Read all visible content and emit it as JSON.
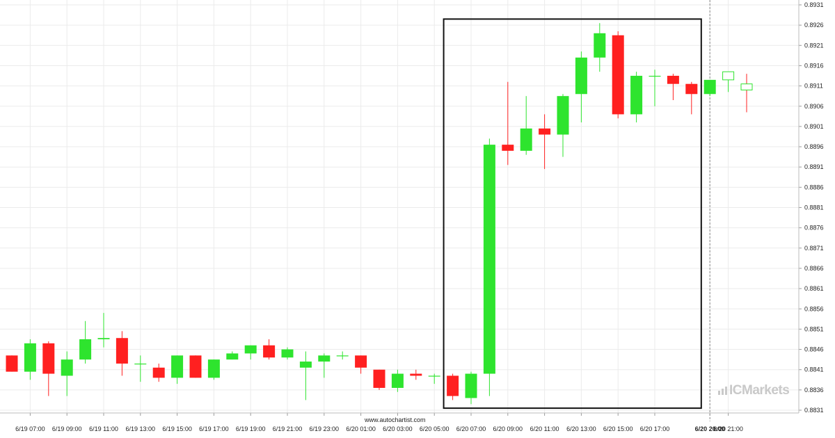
{
  "chart_data": {
    "type": "candlestick",
    "y_ticks": [
      "0.8931",
      "0.8926",
      "0.8921",
      "0.8916",
      "0.8911",
      "0.8906",
      "0.8901",
      "0.8896",
      "0.8891",
      "0.8886",
      "0.8881",
      "0.8876",
      "0.8871",
      "0.8866",
      "0.8861",
      "0.8856",
      "0.8851",
      "0.8846",
      "0.8841",
      "0.8836",
      "0.8831"
    ],
    "ylim": [
      0.8829,
      0.89315
    ],
    "x_labels": [
      "6/19 07:00",
      "6/19 09:00",
      "6/19 11:00",
      "6/19 13:00",
      "6/19 15:00",
      "6/19 17:00",
      "6/19 19:00",
      "6/19 21:00",
      "6/19 23:00",
      "6/20 01:00",
      "6/20 03:00",
      "6/20 05:00",
      "6/20 07:00",
      "6/20 09:00",
      "6/20 11:00",
      "6/20 13:00",
      "6/20 15:00",
      "6/20 17:00",
      "6/20 20:00",
      "6/20 21:00"
    ],
    "highlight_x_label": "6/20 20:00",
    "candles": [
      {
        "t": "6/19 06:00",
        "o": 0.88445,
        "h": 0.88445,
        "l": 0.88405,
        "c": 0.88405
      },
      {
        "t": "6/19 07:00",
        "o": 0.88405,
        "h": 0.88485,
        "l": 0.88385,
        "c": 0.88475
      },
      {
        "t": "6/19 08:00",
        "o": 0.88475,
        "h": 0.8848,
        "l": 0.88345,
        "c": 0.884
      },
      {
        "t": "6/19 09:00",
        "o": 0.88395,
        "h": 0.88455,
        "l": 0.88345,
        "c": 0.88435
      },
      {
        "t": "6/19 10:00",
        "o": 0.88435,
        "h": 0.8853,
        "l": 0.88425,
        "c": 0.88485
      },
      {
        "t": "6/19 11:00",
        "o": 0.88485,
        "h": 0.8855,
        "l": 0.88465,
        "c": 0.88488
      },
      {
        "t": "6/19 12:00",
        "o": 0.88488,
        "h": 0.88505,
        "l": 0.88395,
        "c": 0.88425
      },
      {
        "t": "6/19 13:00",
        "o": 0.88425,
        "h": 0.88445,
        "l": 0.8838,
        "c": 0.88425
      },
      {
        "t": "6/19 14:00",
        "o": 0.88415,
        "h": 0.88425,
        "l": 0.8838,
        "c": 0.8839
      },
      {
        "t": "6/19 15:00",
        "o": 0.8839,
        "h": 0.88445,
        "l": 0.88375,
        "c": 0.88445
      },
      {
        "t": "6/19 16:00",
        "o": 0.88445,
        "h": 0.88445,
        "l": 0.8839,
        "c": 0.8839
      },
      {
        "t": "6/19 17:00",
        "o": 0.8839,
        "h": 0.88435,
        "l": 0.88385,
        "c": 0.88435
      },
      {
        "t": "6/19 18:00",
        "o": 0.88435,
        "h": 0.88455,
        "l": 0.88435,
        "c": 0.8845
      },
      {
        "t": "6/19 19:00",
        "o": 0.8845,
        "h": 0.8847,
        "l": 0.88435,
        "c": 0.8847
      },
      {
        "t": "6/19 20:00",
        "o": 0.8847,
        "h": 0.88485,
        "l": 0.88435,
        "c": 0.8844
      },
      {
        "t": "6/19 21:00",
        "o": 0.8844,
        "h": 0.88465,
        "l": 0.88435,
        "c": 0.8846
      },
      {
        "t": "6/19 22:00",
        "o": 0.88415,
        "h": 0.88455,
        "l": 0.88335,
        "c": 0.8843
      },
      {
        "t": "6/19 23:00",
        "o": 0.8843,
        "h": 0.8845,
        "l": 0.8839,
        "c": 0.88445
      },
      {
        "t": "6/20 00:00",
        "o": 0.88445,
        "h": 0.88455,
        "l": 0.88435,
        "c": 0.88445
      },
      {
        "t": "6/20 01:00",
        "o": 0.88445,
        "h": 0.88445,
        "l": 0.884,
        "c": 0.88415
      },
      {
        "t": "6/20 02:00",
        "o": 0.8841,
        "h": 0.8841,
        "l": 0.8836,
        "c": 0.88365
      },
      {
        "t": "6/20 03:00",
        "o": 0.88365,
        "h": 0.8841,
        "l": 0.88355,
        "c": 0.884
      },
      {
        "t": "6/20 04:00",
        "o": 0.884,
        "h": 0.8841,
        "l": 0.88385,
        "c": 0.88395
      },
      {
        "t": "6/20 05:00",
        "o": 0.88395,
        "h": 0.884,
        "l": 0.88375,
        "c": 0.88395
      },
      {
        "t": "6/20 06:00",
        "o": 0.88395,
        "h": 0.884,
        "l": 0.88335,
        "c": 0.88345
      },
      {
        "t": "6/20 07:00",
        "o": 0.8834,
        "h": 0.88405,
        "l": 0.88325,
        "c": 0.884
      },
      {
        "t": "6/20 08:00",
        "o": 0.884,
        "h": 0.8898,
        "l": 0.88345,
        "c": 0.88965
      },
      {
        "t": "6/20 09:00",
        "o": 0.88965,
        "h": 0.8912,
        "l": 0.88915,
        "c": 0.8895
      },
      {
        "t": "6/20 10:00",
        "o": 0.8895,
        "h": 0.89085,
        "l": 0.8894,
        "c": 0.89005
      },
      {
        "t": "6/20 11:00",
        "o": 0.89005,
        "h": 0.8904,
        "l": 0.88905,
        "c": 0.8899
      },
      {
        "t": "6/20 12:00",
        "o": 0.8899,
        "h": 0.8909,
        "l": 0.88935,
        "c": 0.89085
      },
      {
        "t": "6/20 13:00",
        "o": 0.8909,
        "h": 0.89195,
        "l": 0.8902,
        "c": 0.8918
      },
      {
        "t": "6/20 14:00",
        "o": 0.8918,
        "h": 0.89265,
        "l": 0.89145,
        "c": 0.8924
      },
      {
        "t": "6/20 15:00",
        "o": 0.89235,
        "h": 0.89245,
        "l": 0.8903,
        "c": 0.8904
      },
      {
        "t": "6/20 16:00",
        "o": 0.8904,
        "h": 0.89145,
        "l": 0.8902,
        "c": 0.89135
      },
      {
        "t": "6/20 17:00",
        "o": 0.89135,
        "h": 0.8915,
        "l": 0.8906,
        "c": 0.89135
      },
      {
        "t": "6/20 18:00",
        "o": 0.89135,
        "h": 0.8914,
        "l": 0.89075,
        "c": 0.89115
      },
      {
        "t": "6/20 19:00",
        "o": 0.89115,
        "h": 0.8912,
        "l": 0.8904,
        "c": 0.8909
      },
      {
        "t": "6/20 20:00",
        "o": 0.8909,
        "h": 0.89125,
        "l": 0.89085,
        "c": 0.89125
      },
      {
        "t": "6/20 21:00",
        "o": 0.89125,
        "h": 0.89145,
        "l": 0.89095,
        "c": 0.89145,
        "hollow": true
      },
      {
        "t": "6/20 22:00",
        "o": 0.89115,
        "h": 0.8914,
        "l": 0.89045,
        "c": 0.891,
        "hollow": true
      }
    ],
    "highlight_box": {
      "from": "6/20 06:00",
      "to": "6/20 19:00",
      "top": 0.89275,
      "bottom": 0.88315
    },
    "current_time_marker": "6/20 20:00",
    "colors": {
      "up": "#2ee42e",
      "down": "#ff2020",
      "grid": "#ebebeb",
      "box": "#111111",
      "marker": "#888888"
    }
  },
  "footer": {
    "source": "www.autochartist.com"
  },
  "brand": {
    "prefix": "IC",
    "suffix": "Markets"
  }
}
